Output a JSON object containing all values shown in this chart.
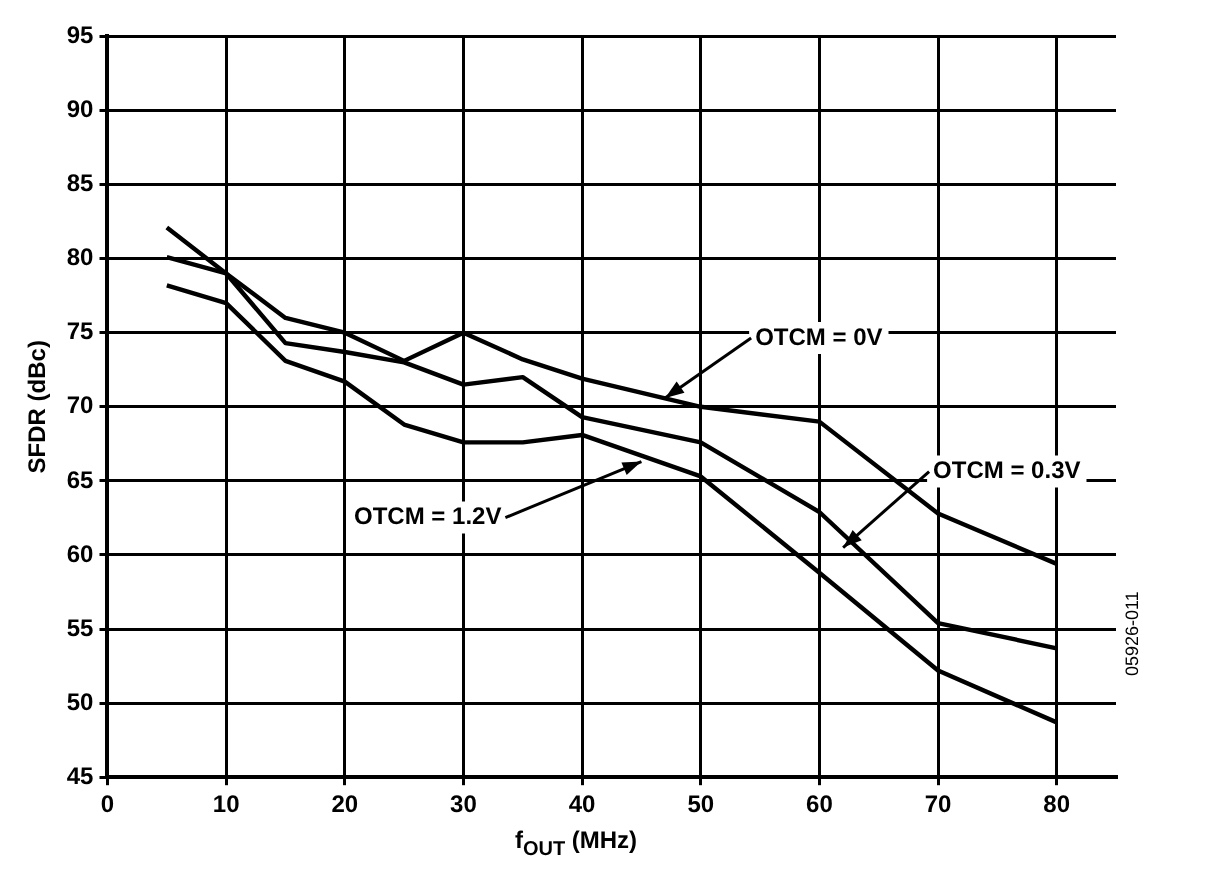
{
  "chart_data": {
    "type": "line",
    "xlabel": "f$_{OUT}$ (MHz)",
    "ylabel": "SFDR (dBc)",
    "xlim": [
      0,
      85
    ],
    "xticks": [
      0,
      10,
      20,
      30,
      40,
      50,
      60,
      70,
      80
    ],
    "ylim": [
      45,
      95
    ],
    "yticks": [
      45,
      50,
      55,
      60,
      65,
      70,
      75,
      80,
      85,
      90,
      95
    ],
    "grid": true,
    "legend": false,
    "marker": "none",
    "line_style": "solid",
    "x": [
      5,
      10,
      15,
      20,
      25,
      30,
      35,
      40,
      50,
      60,
      70,
      80
    ],
    "series": [
      {
        "color": "#000000",
        "values": [
          82.1,
          79,
          76,
          75,
          73.1,
          75,
          73.2,
          71.9,
          70,
          69,
          62.8,
          59.4
        ]
      },
      {
        "color": "#000000",
        "values": [
          80.1,
          79,
          74.3,
          73.7,
          73,
          71.5,
          72,
          69.3,
          67.6,
          62.9,
          55.4,
          53.7
        ]
      },
      {
        "color": "#000000",
        "values": [
          78.2,
          77,
          73.1,
          71.7,
          68.8,
          67.6,
          67.6,
          68.1,
          65.3,
          58.8,
          52.2,
          48.7
        ]
      }
    ],
    "annotations": [
      {
        "text": "OTCM = 0V",
        "x": 47,
        "y": 70.6
      },
      {
        "text": "OTCM = 0.3V",
        "x": 62,
        "y": 60.5
      },
      {
        "text": "OTCM = 1.2V",
        "x": 45,
        "y": 66.3
      },
      "05926-011"
    ]
  }
}
